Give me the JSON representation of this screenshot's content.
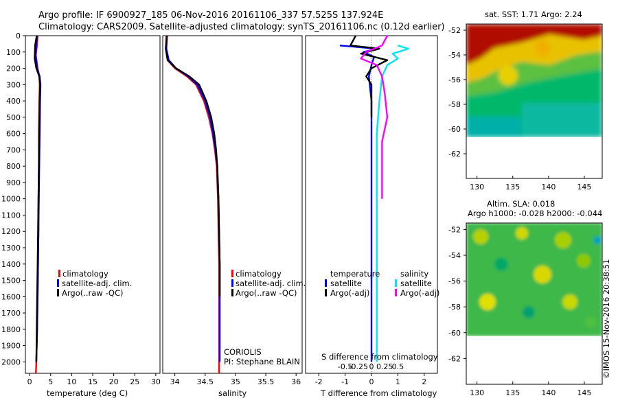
{
  "header": {
    "line1": "Argo profile: IF 6900927_185 06-Nov-2016 20161106_337 57.525S 137.924E",
    "line2": "Climatology: CARS2009. Satellite-adjusted climatology: synTS_20161106.nc (0.12d earlier)"
  },
  "colors": {
    "red": "#ff0000",
    "blue": "#0000ff",
    "black": "#000000",
    "cyan": "#00e5ee",
    "magenta": "#ff00ff"
  },
  "chart_data": [
    {
      "type": "line",
      "xlabel": "temperature (deg C)",
      "xlim": [
        -1,
        31
      ],
      "ylim": [
        0,
        2070
      ],
      "y_reversed": true,
      "xticks": [
        "0",
        "5",
        "10",
        "15",
        "20",
        "25",
        "30"
      ],
      "xtick_values": [
        0,
        5,
        10,
        15,
        20,
        25,
        30
      ],
      "yticks": [
        "0",
        "100",
        "200",
        "300",
        "400",
        "500",
        "600",
        "700",
        "800",
        "900",
        "1000",
        "1100",
        "1200",
        "1300",
        "1400",
        "1500",
        "1600",
        "1700",
        "1800",
        "1900",
        "2000"
      ],
      "ytick_values": [
        0,
        100,
        200,
        300,
        400,
        500,
        600,
        700,
        800,
        900,
        1000,
        1100,
        1200,
        1300,
        1400,
        1500,
        1600,
        1700,
        1800,
        1900,
        2000
      ],
      "legend": [
        "climatology",
        "satellite-adj. clim.",
        "Argo(..raw -QC)"
      ],
      "series": [
        {
          "name": "climatology",
          "color": "red",
          "x": [
            1.9,
            1.8,
            1.5,
            1.9,
            2.3,
            2.4,
            2.3,
            2.2,
            2.2,
            2.1,
            2.1,
            2.0,
            1.9,
            1.8,
            1.6,
            1.5
          ],
          "y": [
            0,
            50,
            120,
            200,
            250,
            300,
            400,
            600,
            800,
            1000,
            1200,
            1400,
            1600,
            1800,
            2000,
            2070
          ]
        },
        {
          "name": "satellite-adj. clim.",
          "color": "blue",
          "x": [
            1.8,
            1.6,
            1.4,
            1.8,
            2.4,
            2.6,
            2.5,
            2.4,
            2.3,
            2.2,
            2.1,
            2.0,
            1.9,
            1.8,
            1.6
          ],
          "y": [
            0,
            50,
            120,
            200,
            250,
            300,
            400,
            600,
            800,
            1000,
            1200,
            1400,
            1600,
            1800,
            2000
          ]
        },
        {
          "name": "Argo(..raw -QC)",
          "color": "black",
          "x": [
            1.7,
            1.3,
            1.2,
            1.6,
            2.3,
            2.5,
            2.4,
            2.3,
            2.2,
            2.1,
            2.0,
            1.9,
            1.8,
            1.7,
            1.6
          ],
          "y": [
            0,
            60,
            140,
            200,
            250,
            300,
            400,
            600,
            800,
            1000,
            1200,
            1400,
            1600,
            1800,
            2000
          ]
        }
      ]
    },
    {
      "type": "line",
      "xlabel": "salinity",
      "xlim": [
        33.8,
        36.1
      ],
      "ylim": [
        0,
        2070
      ],
      "y_reversed": true,
      "xticks": [
        "34",
        "34.5",
        "35",
        "35.5",
        "36"
      ],
      "xtick_values": [
        34,
        34.5,
        35,
        35.5,
        36
      ],
      "legend": [
        "climatology",
        "satellite-adj. clim.",
        "Argo(..raw -QC)"
      ],
      "annotation": [
        "CORIOLIS",
        "PI: Stephane BLAIN"
      ],
      "series": [
        {
          "name": "climatology",
          "color": "red",
          "x": [
            33.86,
            33.85,
            33.88,
            34.0,
            34.2,
            34.35,
            34.48,
            34.56,
            34.62,
            34.66,
            34.69,
            34.71,
            34.72,
            34.73,
            34.73,
            34.73,
            34.73
          ],
          "y": [
            0,
            80,
            150,
            200,
            250,
            300,
            400,
            500,
            600,
            700,
            800,
            1000,
            1200,
            1400,
            1600,
            1800,
            2070
          ]
        },
        {
          "name": "satellite-adj. clim.",
          "color": "blue",
          "x": [
            33.87,
            33.86,
            33.9,
            34.02,
            34.22,
            34.37,
            34.5,
            34.58,
            34.63,
            34.67,
            34.7,
            34.72,
            34.73,
            34.74,
            34.74,
            34.74,
            34.74
          ],
          "y": [
            0,
            80,
            150,
            200,
            250,
            300,
            400,
            500,
            600,
            700,
            800,
            1000,
            1200,
            1400,
            1600,
            1800,
            2000
          ]
        },
        {
          "name": "Argo(..raw -QC)",
          "color": "black",
          "x": [
            33.87,
            33.85,
            33.88,
            34.02,
            34.24,
            34.4,
            34.52,
            34.6,
            34.65,
            34.68,
            34.7,
            34.72,
            34.73,
            34.74,
            34.74
          ],
          "y": [
            0,
            80,
            150,
            200,
            250,
            300,
            400,
            500,
            600,
            700,
            800,
            1000,
            1200,
            1400,
            1600
          ]
        }
      ]
    },
    {
      "type": "line",
      "xlabel": "T difference from climatology",
      "x2label": "S difference from climatology",
      "xlim": [
        -2.5,
        2.5
      ],
      "ylim": [
        0,
        2070
      ],
      "y_reversed": true,
      "xticks": [
        "-2",
        "-1",
        "0",
        "1",
        "2"
      ],
      "xtick_values": [
        -2,
        -1,
        0,
        1,
        2
      ],
      "x2ticks": [
        "-0.5",
        "-0.25",
        "0",
        "0.25",
        "0.5"
      ],
      "legend_headers": [
        "temperature",
        "salinity"
      ],
      "legend": [
        [
          "satellite",
          "Argo(-adj)"
        ],
        [
          "satellite",
          "Argo(-adj)"
        ]
      ],
      "series": [
        {
          "name": "satellite",
          "group": "temperature",
          "color": "blue",
          "x": [
            -1.2,
            0.2,
            -0.3,
            0.1,
            0.0,
            -0.1,
            0.0,
            0.0,
            0.0,
            0.0,
            0.0,
            0.0,
            0.0
          ],
          "y": [
            60,
            80,
            100,
            130,
            180,
            250,
            400,
            600,
            800,
            1000,
            1400,
            1800,
            2000
          ]
        },
        {
          "name": "Argo(-adj)",
          "group": "temperature",
          "color": "black",
          "x": [
            -0.6,
            -0.8,
            0.3,
            -0.4,
            0.6,
            0.0,
            -0.2,
            0.0,
            0.0,
            0.0
          ],
          "y": [
            0,
            60,
            80,
            110,
            150,
            200,
            250,
            300,
            400,
            500
          ]
        },
        {
          "name": "satellite",
          "group": "salinity",
          "color": "cyan",
          "x": [
            0.5,
            0.7,
            0.4,
            0.5,
            0.3,
            0.2,
            0.15,
            0.1,
            0.1,
            0.1,
            0.1,
            0.1,
            0.1
          ],
          "y": [
            60,
            80,
            110,
            140,
            180,
            250,
            400,
            600,
            800,
            1000,
            1400,
            1800,
            2000
          ]
        },
        {
          "name": "Argo(-adj)",
          "group": "salinity",
          "color": "magenta",
          "x": [
            0.3,
            0.2,
            -0.1,
            -0.2,
            0.1,
            0.2,
            0.25,
            0.3,
            0.2,
            0.2,
            0.2
          ],
          "y": [
            0,
            60,
            100,
            140,
            180,
            250,
            350,
            500,
            650,
            800,
            1000
          ]
        }
      ]
    },
    {
      "type": "heatmap",
      "title": "sat. SST: 1.71 Argo: 2.24",
      "xlim": [
        128.5,
        147.5
      ],
      "ylim": [
        -64,
        -51.5
      ],
      "xticks": [
        "130",
        "135",
        "140",
        "145"
      ],
      "yticks": [
        "-52",
        "-54",
        "-56",
        "-58",
        "-60",
        "-62"
      ]
    },
    {
      "type": "heatmap",
      "title": "Altim. SLA: 0.018",
      "subtitle": "Argo h1000: -0.028 h2000: -0.044",
      "xlim": [
        128.5,
        147.5
      ],
      "ylim": [
        -64,
        -51.5
      ],
      "xticks": [
        "130",
        "135",
        "140",
        "145"
      ],
      "yticks": [
        "-52",
        "-54",
        "-56",
        "-58",
        "-60",
        "-62"
      ]
    }
  ],
  "footer_stamp": "©IMOS 15-Nov-2016 20:38:51"
}
